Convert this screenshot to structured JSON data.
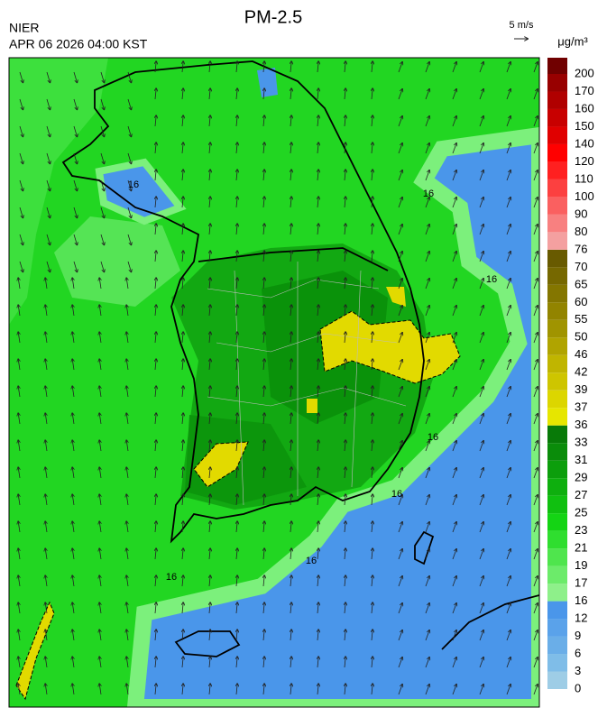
{
  "header": {
    "title": "PM-2.5",
    "agency": "NIER",
    "datetime": "APR 06 2026 04:00 KST",
    "vector_scale": "5 m/s"
  },
  "colorbar": {
    "unit": "μg/m³",
    "labels": [
      0,
      3,
      6,
      9,
      12,
      16,
      17,
      19,
      21,
      23,
      25,
      27,
      29,
      31,
      33,
      36,
      37,
      39,
      42,
      46,
      50,
      55,
      60,
      65,
      70,
      76,
      80,
      90,
      100,
      110,
      120,
      140,
      150,
      160,
      170,
      200
    ],
    "colors": [
      "#9ecde6",
      "#7fbde8",
      "#6aaee8",
      "#5aa2ea",
      "#4a96ea",
      "#8ef08a",
      "#6ceb6a",
      "#4fe54d",
      "#2fde2f",
      "#14d414",
      "#10c010",
      "#0eaf0e",
      "#0c9e0c",
      "#0a8c0a",
      "#087a08",
      "#e6e600",
      "#dcd600",
      "#cec500",
      "#c0b500",
      "#b0a400",
      "#a09400",
      "#928400",
      "#847600",
      "#766800",
      "#685a00",
      "#f4a0a0",
      "#f88080",
      "#fa6060",
      "#fc4040",
      "#ff2020",
      "#ff0000",
      "#e00000",
      "#c80000",
      "#b00000",
      "#980000",
      "#700000"
    ]
  },
  "map": {
    "contour_labels": [
      "16",
      "16",
      "16",
      "16",
      "16",
      "16",
      "16"
    ]
  }
}
